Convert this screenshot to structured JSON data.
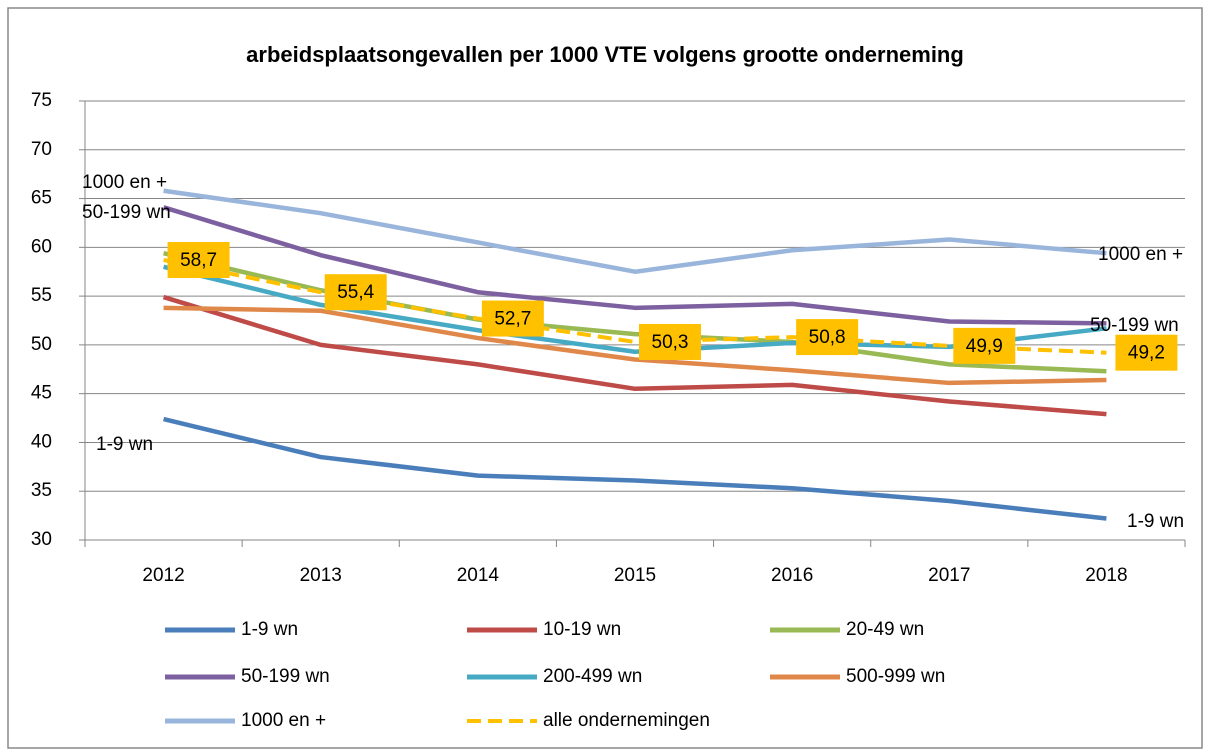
{
  "chart_data": {
    "type": "line",
    "title": "arbeidsplaatsongevallen per 1000 VTE volgens grootte onderneming",
    "categories": [
      "2012",
      "2013",
      "2014",
      "2015",
      "2016",
      "2017",
      "2018"
    ],
    "series": [
      {
        "name": "1-9 wn",
        "color": "#4a7ebb",
        "values": [
          42.4,
          38.5,
          36.6,
          36.1,
          35.3,
          34.0,
          32.2
        ]
      },
      {
        "name": "10-19 wn",
        "color": "#be4b48",
        "values": [
          54.9,
          50.0,
          48.0,
          45.5,
          45.9,
          44.2,
          42.9
        ]
      },
      {
        "name": "20-49 wn",
        "color": "#98b954",
        "values": [
          59.4,
          55.6,
          52.6,
          51.1,
          50.3,
          48.0,
          47.3
        ]
      },
      {
        "name": "50-199 wn",
        "color": "#7d60a0",
        "values": [
          64.1,
          59.2,
          55.4,
          53.8,
          54.2,
          52.4,
          52.2
        ]
      },
      {
        "name": "200-499 wn",
        "color": "#46aac5",
        "values": [
          58.0,
          54.1,
          51.5,
          49.3,
          50.2,
          49.8,
          51.7
        ]
      },
      {
        "name": "500-999 wn",
        "color": "#e0884a",
        "values": [
          53.8,
          53.5,
          50.7,
          48.5,
          47.4,
          46.1,
          46.4
        ]
      },
      {
        "name": "1000 en +",
        "color": "#9ab5dc",
        "values": [
          65.8,
          63.5,
          60.5,
          57.5,
          59.7,
          60.8,
          59.4
        ]
      },
      {
        "name": "alle ondernemingen",
        "color": "#ffc000",
        "dashed": true,
        "values": [
          58.7,
          55.4,
          52.7,
          50.3,
          50.8,
          49.9,
          49.2
        ],
        "value_labels": [
          "58,7",
          "55,4",
          "52,7",
          "50,3",
          "50,8",
          "49,9",
          "49,2"
        ]
      }
    ],
    "annotations": [
      "1000 en +",
      "50-199 wn",
      "1-9 wn",
      "1000 en +",
      "50-199 wn",
      "1-9 wn"
    ],
    "ylim": [
      30,
      75
    ],
    "yticks": [
      30,
      35,
      40,
      45,
      50,
      55,
      60,
      65,
      70,
      75
    ],
    "grid": true,
    "legend": "bottom"
  }
}
